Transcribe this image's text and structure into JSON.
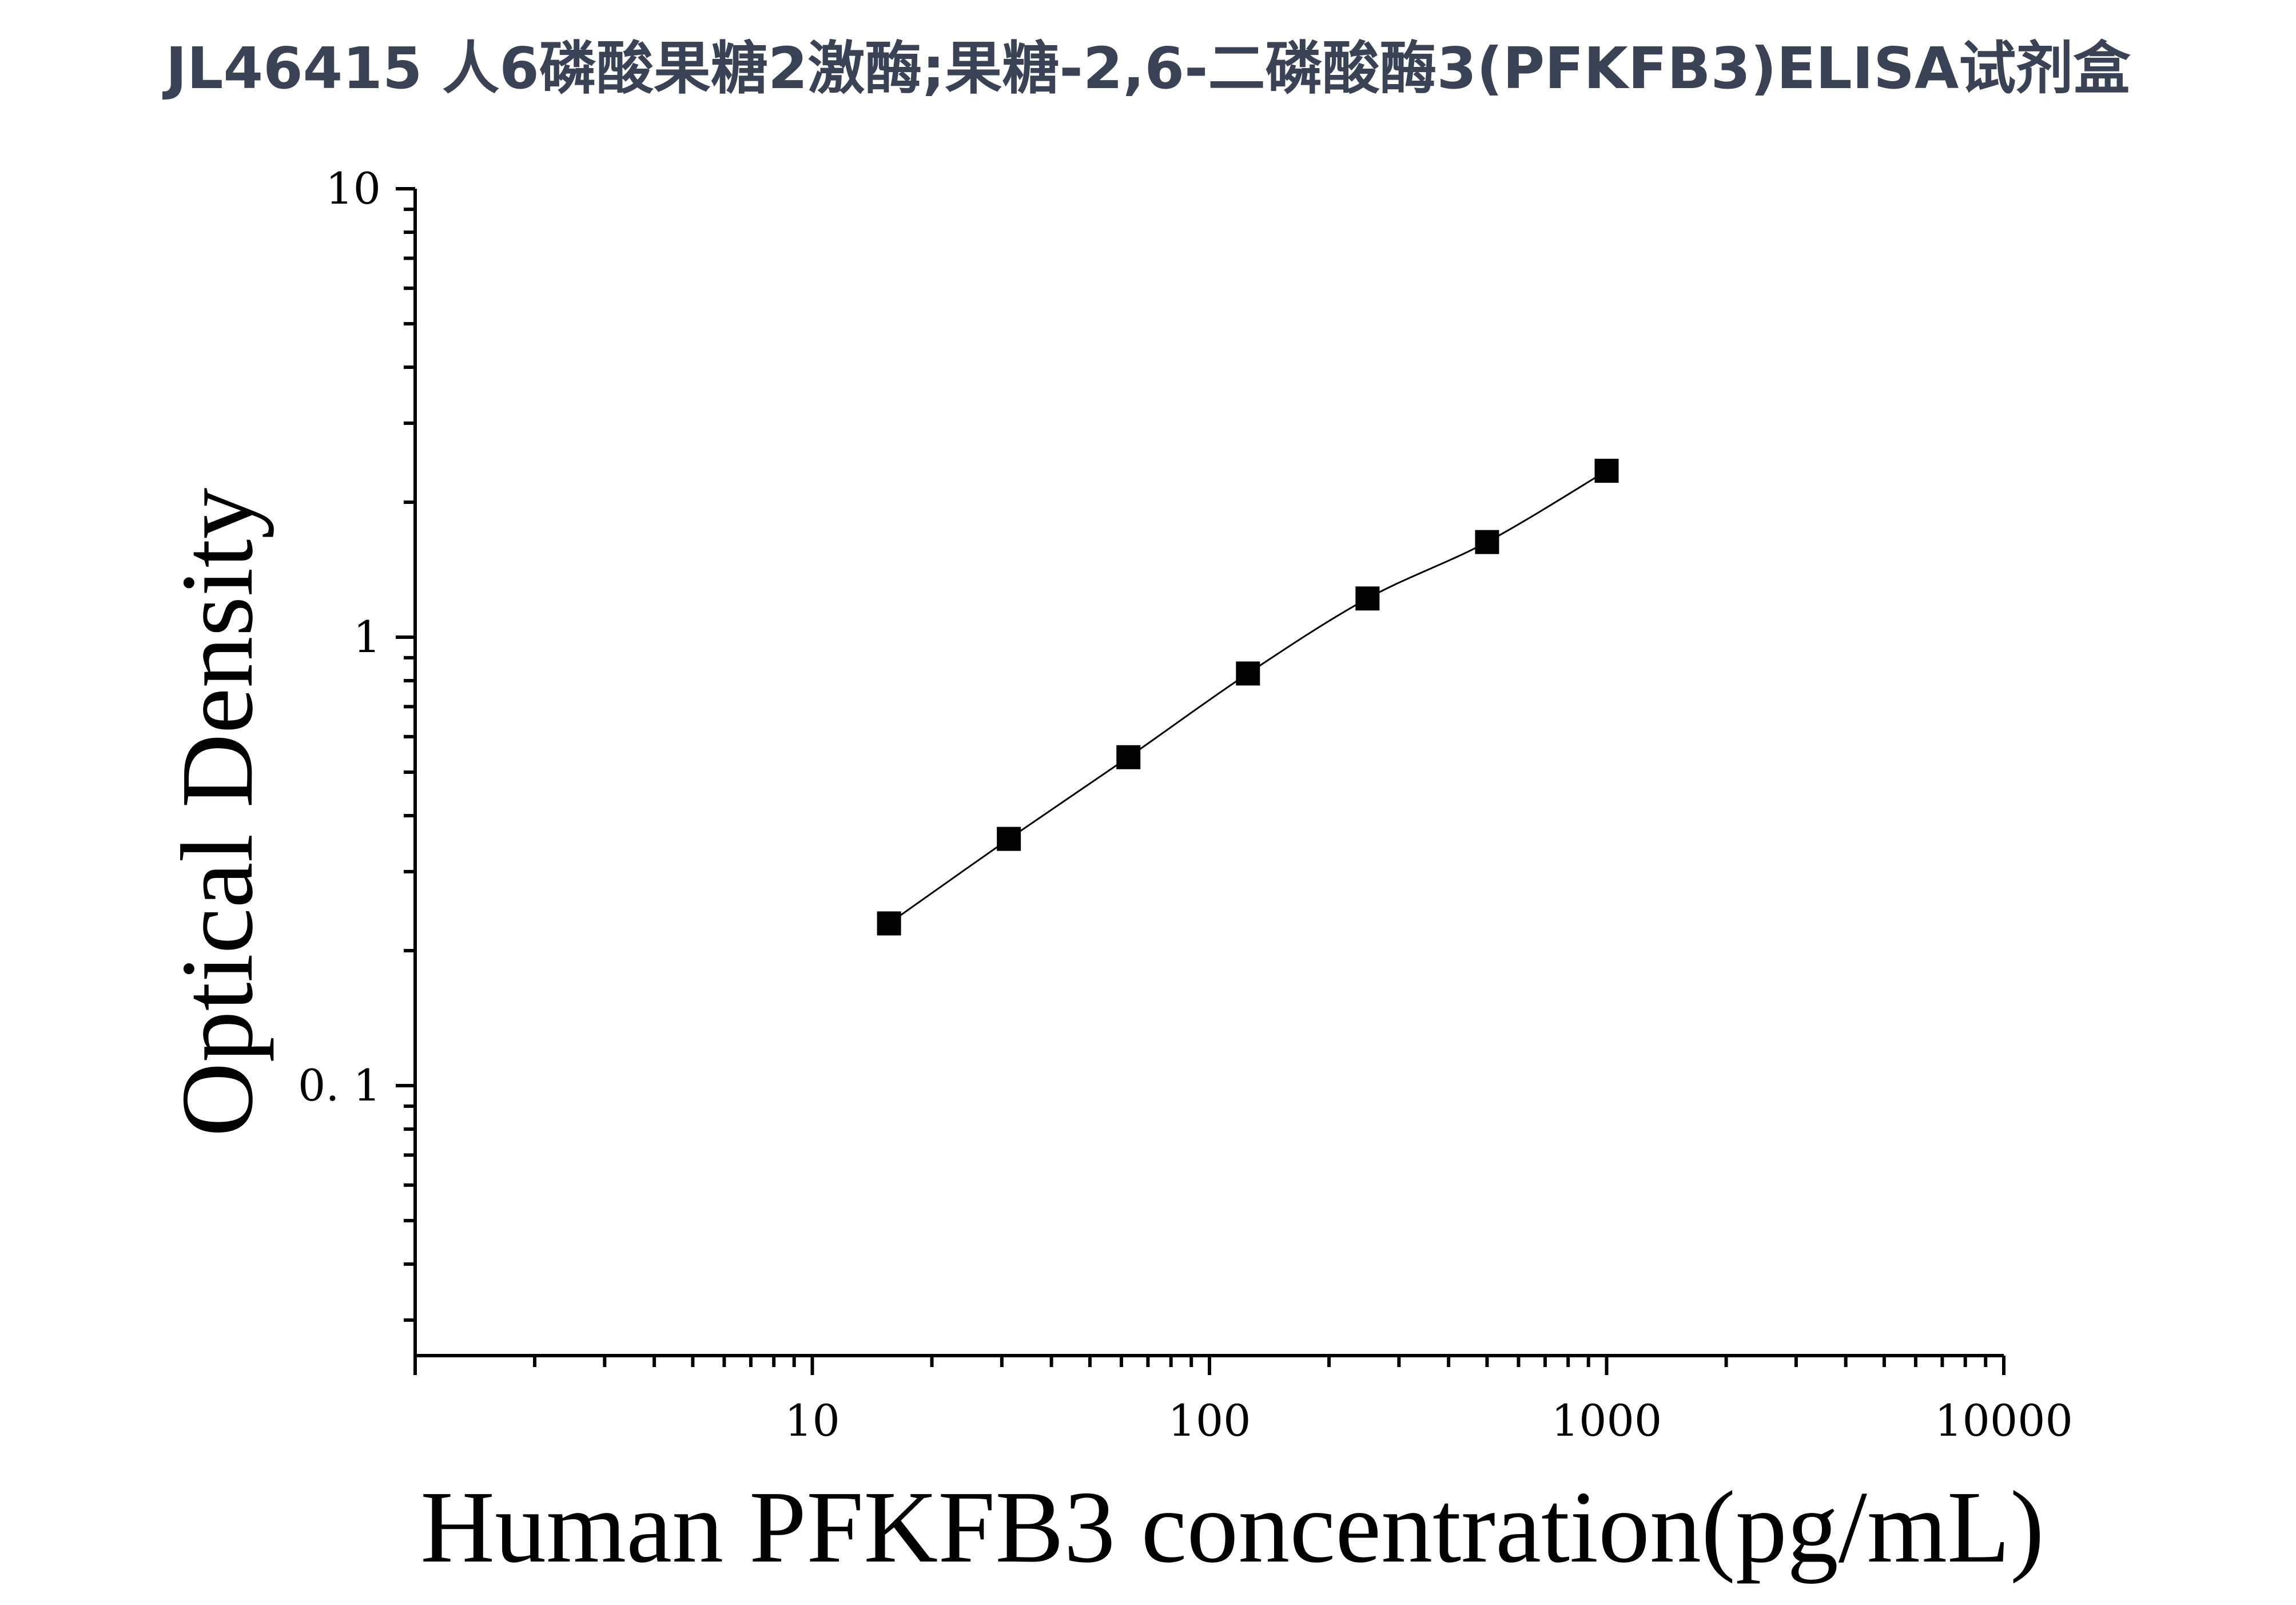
{
  "title": "JL46415 人6磷酸果糖2激酶;果糖-2,6-二磷酸酶3(PFKFB3)ELISA试剂盒",
  "colors": {
    "title": "#3a4356",
    "axis": "#000000",
    "marker": "#000000",
    "curve": "#000000",
    "background": "#ffffff"
  },
  "chart_data": {
    "type": "scatter",
    "xlabel": "Human PFKFB3 concentration(pg/mL)",
    "ylabel": "Optical Density",
    "xscale": "log",
    "yscale": "log",
    "xlim": [
      1,
      10000
    ],
    "ylim": [
      0.025,
      10
    ],
    "x_ticks": [
      10,
      100,
      1000,
      10000
    ],
    "x_tick_labels": [
      "10",
      "100",
      "1000",
      "10000"
    ],
    "y_ticks": [
      0.1,
      1,
      10
    ],
    "y_tick_labels": [
      "0. 1",
      "1",
      "10"
    ],
    "grid": false,
    "marker": "square",
    "fit_line": true,
    "series": [
      {
        "x": [
          15.6,
          31.25,
          62.5,
          125,
          250,
          500,
          1000
        ],
        "y": [
          0.23,
          0.355,
          0.54,
          0.83,
          1.22,
          1.63,
          2.35
        ]
      }
    ]
  }
}
